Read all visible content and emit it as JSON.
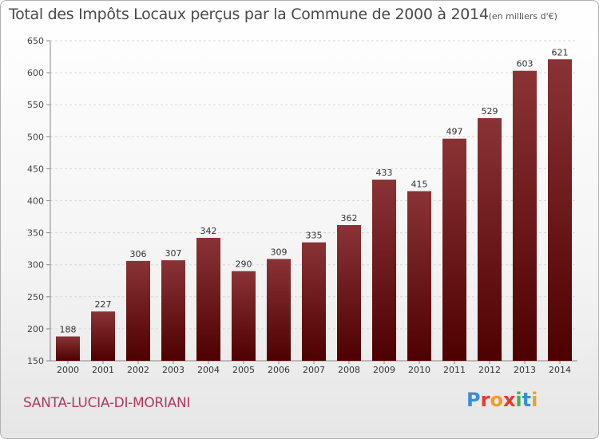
{
  "title": "Total des Impôts Locaux perçus par la Commune de 2000 à 2014",
  "title_unit": "(en milliers d'€)",
  "commune": "SANTA-LUCIA-DI-MORIANI",
  "brand": {
    "letters": [
      "P",
      "r",
      "o",
      "x",
      "i",
      "t",
      "i"
    ],
    "colors": [
      "#3a8fd6",
      "#e53a2f",
      "#f0a020",
      "#e53a2f",
      "#4ab04a",
      "#3a8fd6",
      "#f0a020"
    ]
  },
  "colors": {
    "bar_top": "#8a3336",
    "bar_bottom": "#4e0000",
    "commune_text": "#b03a5a"
  },
  "chart_data": {
    "type": "bar",
    "title": "Total des Impôts Locaux perçus par la Commune de 2000 à 2014",
    "categories": [
      "2000",
      "2001",
      "2002",
      "2003",
      "2004",
      "2005",
      "2006",
      "2007",
      "2008",
      "2009",
      "2010",
      "2011",
      "2012",
      "2013",
      "2014"
    ],
    "values": [
      188,
      227,
      306,
      307,
      342,
      290,
      309,
      335,
      362,
      433,
      415,
      497,
      529,
      603,
      621
    ],
    "ylim": [
      150,
      650
    ],
    "yticks": [
      150,
      200,
      250,
      300,
      350,
      400,
      450,
      500,
      550,
      600,
      650
    ],
    "grid": true,
    "legend": "none"
  }
}
